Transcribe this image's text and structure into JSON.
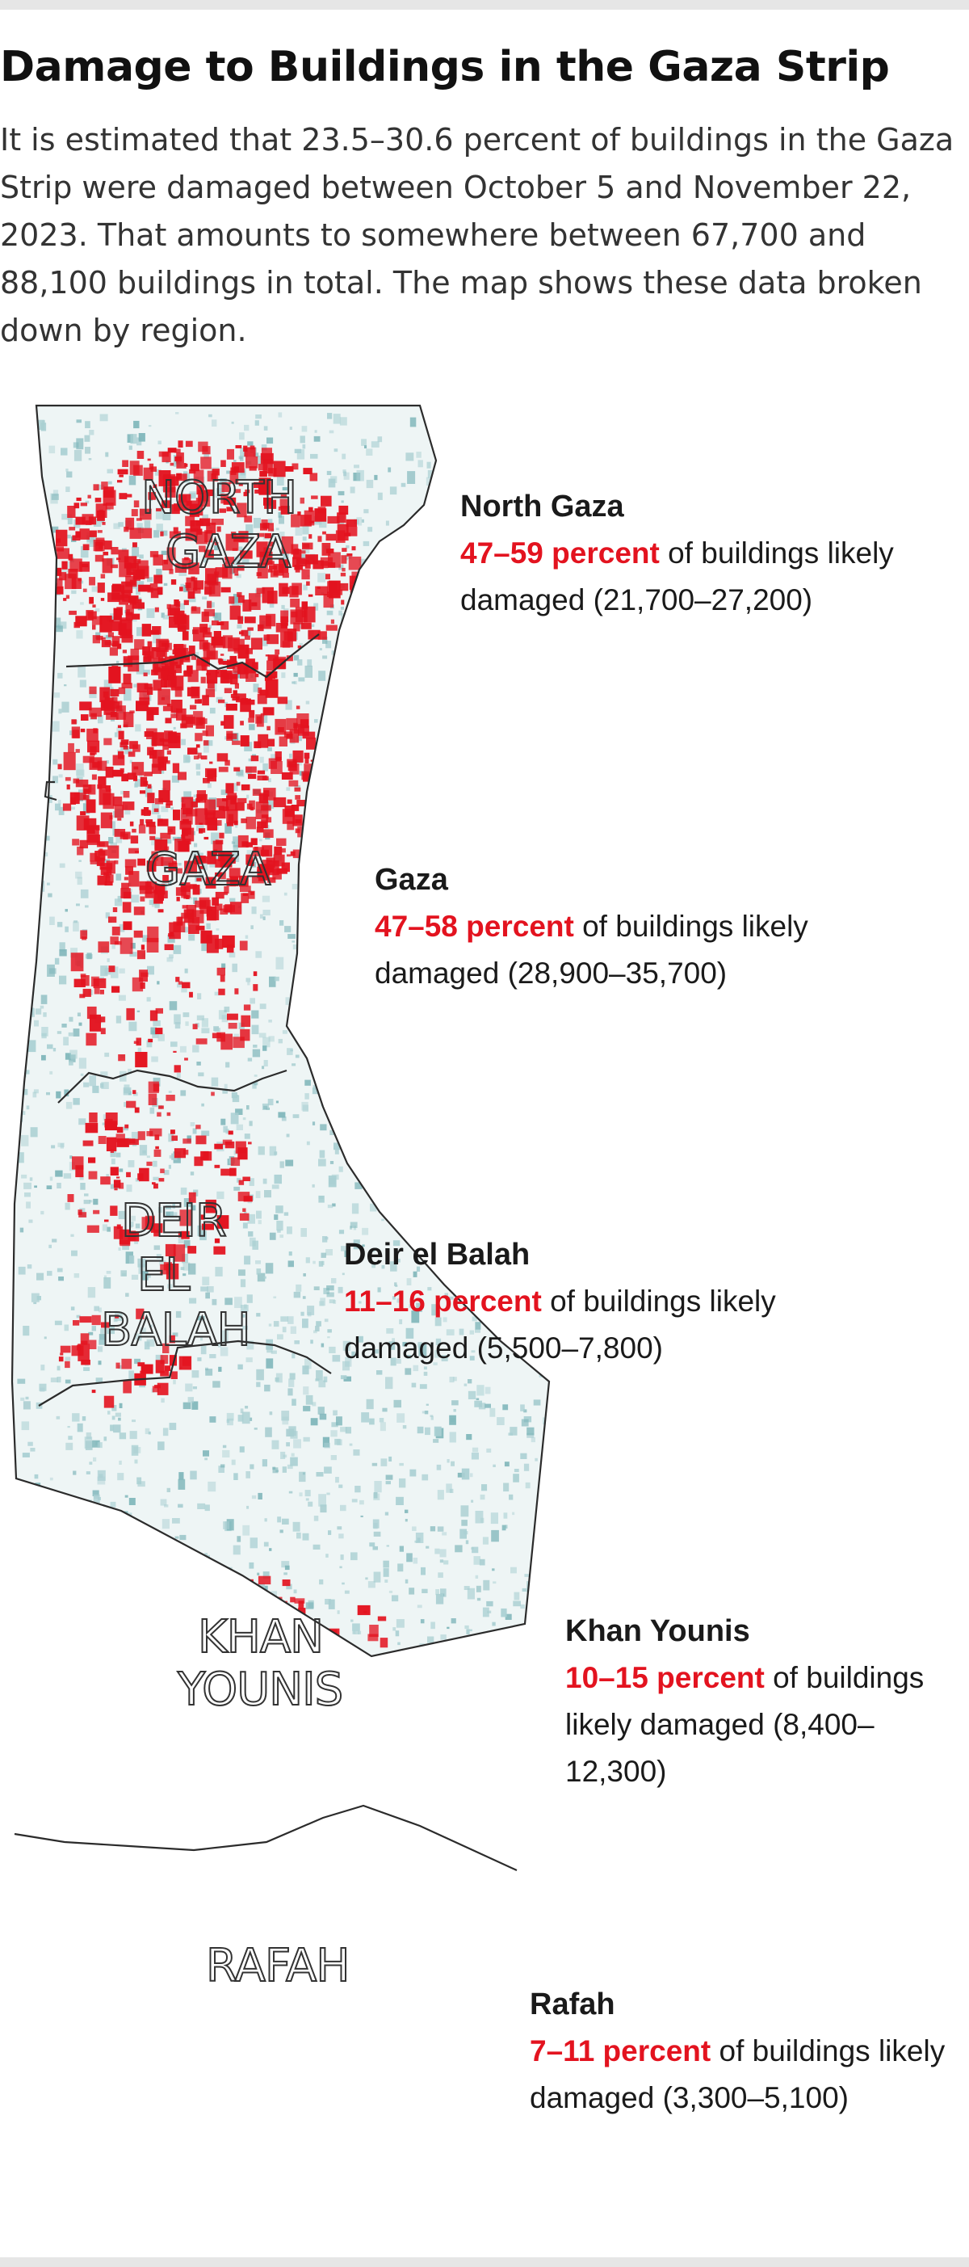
{
  "title": "Damage to Buildings in the Gaza Strip",
  "intro": "It is estimated that 23.5–30.6 percent of buildings in the Gaza Strip were damaged between October 5 and November 22, 2023. That amounts to somewhere between 67,700 and 88,100 buildings in total. The map shows these data broken down by region.",
  "colors": {
    "damage": "#e3131f",
    "buildings": "#a9cfd2",
    "buildings_dense": "#7fb6ba",
    "boundary": "#2b2b2b"
  },
  "map_labels": {
    "north_gaza": [
      "NORTH",
      "GAZA"
    ],
    "gaza": [
      "GAZA"
    ],
    "deir_el_balah": [
      "DEIR",
      "EL",
      "BALAH"
    ],
    "khan_younis": [
      "KHAN",
      "YOUNIS"
    ],
    "rafah": [
      "RAFAH"
    ]
  },
  "regions": [
    {
      "name": "North Gaza",
      "percent": "47–59 percent",
      "rest": " of buildings likely damaged (21,700–27,200)"
    },
    {
      "name": "Gaza",
      "percent": "47–58 percent",
      "rest": " of buildings likely damaged (28,900–35,700)"
    },
    {
      "name": "Deir el Balah",
      "percent": "11–16 percent",
      "rest": " of buildings likely damaged (5,500–7,800)"
    },
    {
      "name": "Khan Younis",
      "percent": "10–15 percent",
      "rest": " of buildings likely damaged (8,400–12,300)"
    },
    {
      "name": "Rafah",
      "percent": "7–11 percent",
      "rest": " of buildings likely damaged (3,300–5,100)"
    }
  ]
}
